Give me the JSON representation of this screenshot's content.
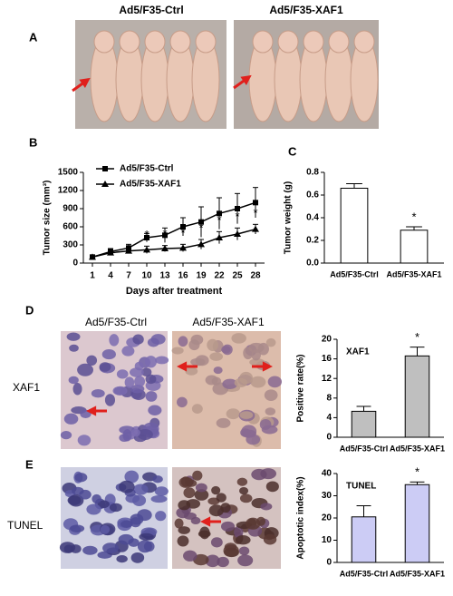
{
  "panel_labels": [
    "A",
    "B",
    "C",
    "D",
    "E"
  ],
  "mouse_photos": {
    "captions": [
      "Ad5/F35-Ctrl",
      "Ad5/F35-XAF1"
    ]
  },
  "micrographs": {
    "columns": [
      "Ad5/F35-Ctrl",
      "Ad5/F35-XAF1"
    ],
    "rows": [
      "XAF1",
      "TUNEL"
    ]
  },
  "chart_data": [
    {
      "type": "line",
      "x_label": "Days after treatment",
      "y_label": "Tumor size (mm³)",
      "x": [
        1,
        4,
        7,
        10,
        13,
        16,
        19,
        22,
        25,
        28
      ],
      "xlim": [
        -0.5,
        29.5
      ],
      "xticks": [
        1,
        4,
        7,
        10,
        13,
        16,
        19,
        22,
        25,
        28
      ],
      "ylim": [
        0,
        1500
      ],
      "yticks": [
        0,
        300,
        600,
        900,
        1200,
        1500
      ],
      "series": [
        {
          "name": "Ad5/F35-Ctrl",
          "color": "#000000",
          "marker": "square",
          "values": [
            100,
            190,
            250,
            420,
            460,
            600,
            680,
            820,
            900,
            1000
          ],
          "errors": [
            20,
            50,
            60,
            70,
            120,
            150,
            250,
            260,
            250,
            250
          ]
        },
        {
          "name": "Ad5/F35-XAF1",
          "color": "#000000",
          "marker": "triangle",
          "values": [
            100,
            170,
            200,
            220,
            240,
            250,
            310,
            420,
            480,
            560
          ],
          "errors": [
            10,
            40,
            40,
            60,
            50,
            60,
            80,
            100,
            100,
            80
          ]
        }
      ],
      "annotations": [
        {
          "x": 10,
          "text": "*"
        },
        {
          "x": 13,
          "text": "*"
        },
        {
          "x": 16,
          "text": "*"
        },
        {
          "x": 19,
          "text": "*"
        },
        {
          "x": 22,
          "text": "*"
        },
        {
          "x": 25,
          "text": "*"
        },
        {
          "x": 28,
          "text": "*"
        }
      ]
    },
    {
      "type": "bar",
      "y_label": "Tumor weight (g)",
      "categories": [
        "Ad5/F35-Ctrl",
        "Ad5/F35-XAF1"
      ],
      "values": [
        0.66,
        0.29
      ],
      "errors": [
        0.04,
        0.03
      ],
      "color": "#ffffff",
      "ylim": [
        0,
        0.8
      ],
      "yticks": [
        {
          "value": 0,
          "label": "0.0"
        },
        0.2,
        0.4,
        0.6,
        0.8
      ],
      "annotations": [
        {
          "x": "Ad5/F35-XAF1",
          "text": "*"
        }
      ]
    },
    {
      "type": "bar",
      "title": "XAF1",
      "y_label": "Positive rate(%)",
      "categories": [
        "Ad5/F35-Ctrl",
        "Ad5/F35-XAF1"
      ],
      "values": [
        5.3,
        16.6
      ],
      "errors": [
        1.0,
        1.8
      ],
      "color": "#bfbfbf",
      "ylim": [
        0,
        20
      ],
      "yticks": [
        0,
        4,
        8,
        12,
        16,
        20
      ],
      "annotations": [
        {
          "x": "Ad5/F35-XAF1",
          "text": "*"
        }
      ]
    },
    {
      "type": "bar",
      "title": "TUNEL",
      "y_label": "Apoptotic index(%)",
      "categories": [
        "Ad5/F35-Ctrl",
        "Ad5/F35-XAF1"
      ],
      "values": [
        20.5,
        35
      ],
      "errors": [
        5,
        1.2
      ],
      "color": "#ccccf5",
      "ylim": [
        0,
        40
      ],
      "yticks": [
        0,
        10,
        20,
        30,
        40
      ],
      "annotations": [
        {
          "x": "Ad5/F35-XAF1",
          "text": "*"
        }
      ]
    }
  ]
}
